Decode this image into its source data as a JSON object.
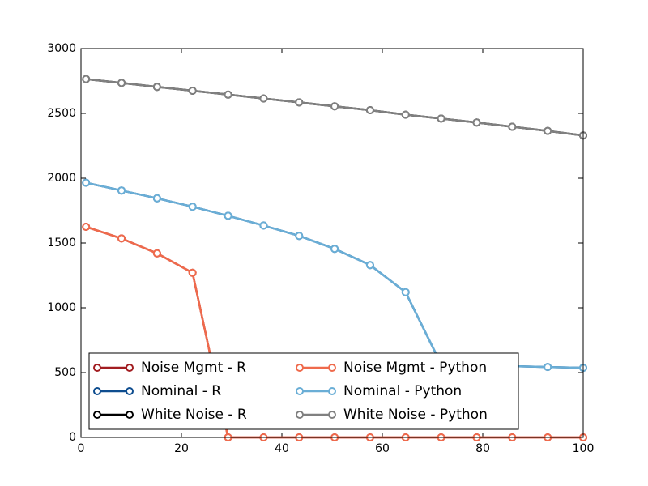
{
  "chart_data": {
    "type": "line",
    "x": [
      1,
      8.07,
      15.14,
      22.21,
      29.29,
      36.36,
      43.43,
      50.5,
      57.57,
      64.64,
      71.71,
      78.79,
      85.86,
      92.93,
      100
    ],
    "series": [
      {
        "name": "Noise Mgmt - R",
        "color": "#a21d21",
        "values": [
          1625,
          1535,
          1420,
          1270,
          0,
          0,
          0,
          0,
          0,
          0,
          0,
          0,
          0,
          0,
          0
        ]
      },
      {
        "name": "Nominal - R",
        "color": "#0e4d8f",
        "values": [
          1965,
          1905,
          1845,
          1780,
          1710,
          1635,
          1555,
          1455,
          1330,
          1120,
          565,
          555,
          550,
          543,
          537
        ]
      },
      {
        "name": "White Noise - R",
        "color": "#000000",
        "values": [
          2765,
          2735,
          2705,
          2675,
          2645,
          2615,
          2585,
          2555,
          2525,
          2490,
          2460,
          2430,
          2397,
          2365,
          2330
        ]
      },
      {
        "name": "Noise Mgmt - Python",
        "color": "#ef6a4c",
        "values": [
          1625,
          1535,
          1420,
          1270,
          0,
          0,
          0,
          0,
          0,
          0,
          0,
          0,
          0,
          0,
          0
        ]
      },
      {
        "name": "Nominal - Python",
        "color": "#6aaed6",
        "values": [
          1965,
          1905,
          1845,
          1780,
          1710,
          1635,
          1555,
          1455,
          1330,
          1120,
          565,
          555,
          550,
          543,
          537
        ]
      },
      {
        "name": "White Noise - Python",
        "color": "#808080",
        "values": [
          2765,
          2735,
          2705,
          2675,
          2645,
          2615,
          2585,
          2555,
          2525,
          2490,
          2460,
          2430,
          2397,
          2365,
          2330
        ]
      }
    ],
    "xlim": [
      0,
      100
    ],
    "xticks": [
      0,
      20,
      40,
      60,
      80,
      100
    ],
    "ylim": [
      0,
      3000
    ],
    "yticks": [
      0,
      500,
      1000,
      1500,
      2000,
      2500,
      3000
    ],
    "legend": "lower left"
  }
}
